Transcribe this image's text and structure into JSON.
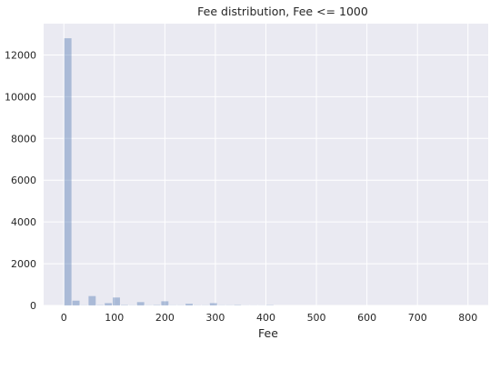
{
  "chart_data": {
    "type": "bar",
    "title": "Fee distribution, Fee <= 1000",
    "xlabel": "Fee",
    "ylabel": "",
    "xlim": [
      -40,
      840
    ],
    "ylim": [
      0,
      13500
    ],
    "xticks": [
      0,
      100,
      200,
      300,
      400,
      500,
      600,
      700,
      800
    ],
    "yticks": [
      0,
      2000,
      4000,
      6000,
      8000,
      10000,
      12000
    ],
    "grid": true,
    "color": "#4c72b0",
    "background": "#eaeaf2",
    "bins": [
      {
        "x0": 0,
        "x1": 16,
        "value": 12800
      },
      {
        "x0": 16,
        "x1": 32,
        "value": 230
      },
      {
        "x0": 32,
        "x1": 48,
        "value": 10
      },
      {
        "x0": 48,
        "x1": 64,
        "value": 450
      },
      {
        "x0": 64,
        "x1": 80,
        "value": 15
      },
      {
        "x0": 80,
        "x1": 96,
        "value": 110
      },
      {
        "x0": 96,
        "x1": 112,
        "value": 380
      },
      {
        "x0": 112,
        "x1": 128,
        "value": 20
      },
      {
        "x0": 128,
        "x1": 144,
        "value": 10
      },
      {
        "x0": 144,
        "x1": 160,
        "value": 160
      },
      {
        "x0": 160,
        "x1": 176,
        "value": 10
      },
      {
        "x0": 176,
        "x1": 192,
        "value": 20
      },
      {
        "x0": 192,
        "x1": 208,
        "value": 200
      },
      {
        "x0": 208,
        "x1": 224,
        "value": 10
      },
      {
        "x0": 224,
        "x1": 240,
        "value": 10
      },
      {
        "x0": 240,
        "x1": 256,
        "value": 80
      },
      {
        "x0": 256,
        "x1": 272,
        "value": 10
      },
      {
        "x0": 272,
        "x1": 288,
        "value": 10
      },
      {
        "x0": 288,
        "x1": 304,
        "value": 110
      },
      {
        "x0": 304,
        "x1": 320,
        "value": 10
      },
      {
        "x0": 320,
        "x1": 336,
        "value": 10
      },
      {
        "x0": 336,
        "x1": 352,
        "value": 20
      },
      {
        "x0": 352,
        "x1": 368,
        "value": 5
      },
      {
        "x0": 368,
        "x1": 384,
        "value": 5
      },
      {
        "x0": 384,
        "x1": 400,
        "value": 5
      },
      {
        "x0": 400,
        "x1": 416,
        "value": 15
      }
    ]
  }
}
